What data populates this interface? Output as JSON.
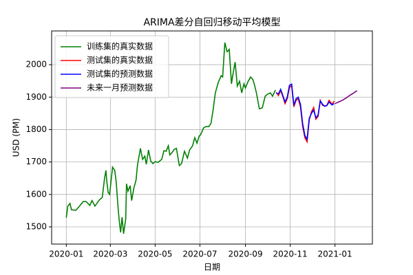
{
  "chart_data": {
    "type": "line",
    "title": "ARIMA差分自回归移动平均模型",
    "x_label": "日期",
    "y_label": "USD (PM)",
    "xlim": [
      -20,
      417
    ],
    "ylim": [
      1447,
      2104
    ],
    "xticks": [
      {
        "value": 0,
        "label": "2020-01"
      },
      {
        "value": 60,
        "label": "2020-03"
      },
      {
        "value": 121,
        "label": "2020-05"
      },
      {
        "value": 182,
        "label": "2020-07"
      },
      {
        "value": 244,
        "label": "2020-09"
      },
      {
        "value": 305,
        "label": "2020-11"
      },
      {
        "value": 366,
        "label": "2021-01"
      }
    ],
    "yticks": [
      1500,
      1600,
      1700,
      1800,
      1900,
      2000
    ],
    "grid": true,
    "legend": "upper left",
    "series": [
      {
        "name": "训练集的真实数据",
        "color": "#008000",
        "x": [
          0,
          2,
          5,
          7,
          13,
          18,
          23,
          27,
          32,
          35,
          39,
          45,
          49,
          52,
          54,
          55,
          57,
          59,
          63,
          66,
          68,
          70,
          72,
          74,
          76,
          78,
          81,
          82,
          84,
          87,
          89,
          92,
          95,
          97,
          101,
          104,
          107,
          109,
          112,
          115,
          118,
          121,
          125,
          130,
          133,
          136,
          139,
          141,
          144,
          147,
          150,
          154,
          157,
          161,
          165,
          168,
          172,
          175,
          178,
          181,
          183,
          187,
          190,
          194,
          197,
          200,
          203,
          207,
          211,
          213,
          216,
          219,
          222,
          225,
          227,
          230,
          233,
          236,
          239,
          242,
          244,
          247,
          251,
          254,
          256,
          259,
          263,
          267,
          271,
          274,
          278,
          281,
          285
        ],
        "values": [
          1528,
          1564,
          1572,
          1553,
          1551,
          1564,
          1578,
          1578,
          1566,
          1581,
          1564,
          1583,
          1591,
          1648,
          1674,
          1644,
          1606,
          1600,
          1684,
          1674,
          1638,
          1574,
          1521,
          1483,
          1530,
          1479,
          1525,
          1633,
          1610,
          1627,
          1581,
          1619,
          1644,
          1691,
          1742,
          1708,
          1718,
          1693,
          1737,
          1703,
          1695,
          1701,
          1699,
          1708,
          1735,
          1733,
          1750,
          1722,
          1729,
          1739,
          1742,
          1689,
          1695,
          1733,
          1712,
          1737,
          1750,
          1775,
          1758,
          1780,
          1784,
          1805,
          1809,
          1809,
          1818,
          1860,
          1913,
          1945,
          1966,
          1962,
          2068,
          2040,
          2047,
          1941,
          1970,
          2008,
          1934,
          1949,
          1913,
          1941,
          1928,
          1945,
          1962,
          1955,
          1941,
          1913,
          1864,
          1867,
          1903,
          1909,
          1913,
          1903,
          1922
        ]
      },
      {
        "name": "测试集的真实数据",
        "color": "#ff0000",
        "x": [
          286,
          289,
          292,
          295,
          298,
          301,
          304,
          307,
          310,
          313,
          316,
          319,
          322,
          325,
          328,
          331,
          334,
          337,
          340,
          343,
          346,
          349,
          352,
          355,
          358,
          362,
          365
        ],
        "values": [
          1915,
          1905,
          1920,
          1902,
          1880,
          1895,
          1930,
          1935,
          1870,
          1890,
          1895,
          1870,
          1810,
          1775,
          1762,
          1830,
          1855,
          1868,
          1832,
          1840,
          1890,
          1875,
          1872,
          1875,
          1890,
          1878,
          1888
        ]
      },
      {
        "name": "测试集的预测数据",
        "color": "#0000ff",
        "x": [
          286,
          289,
          292,
          295,
          298,
          301,
          304,
          307,
          310,
          313,
          316,
          319,
          322,
          325,
          328,
          331,
          334,
          337,
          340,
          343,
          346,
          349,
          352,
          355,
          358,
          362,
          365
        ],
        "values": [
          1912,
          1910,
          1924,
          1905,
          1885,
          1900,
          1936,
          1940,
          1875,
          1895,
          1900,
          1878,
          1818,
          1782,
          1770,
          1835,
          1850,
          1860,
          1836,
          1845,
          1888,
          1878,
          1872,
          1874,
          1885,
          1876,
          1880
        ]
      },
      {
        "name": "未来一月预测数据",
        "color": "#800080",
        "x": [
          366,
          371,
          376,
          381,
          386,
          391,
          396
        ],
        "values": [
          1880,
          1885,
          1890,
          1897,
          1905,
          1912,
          1920
        ]
      }
    ]
  }
}
